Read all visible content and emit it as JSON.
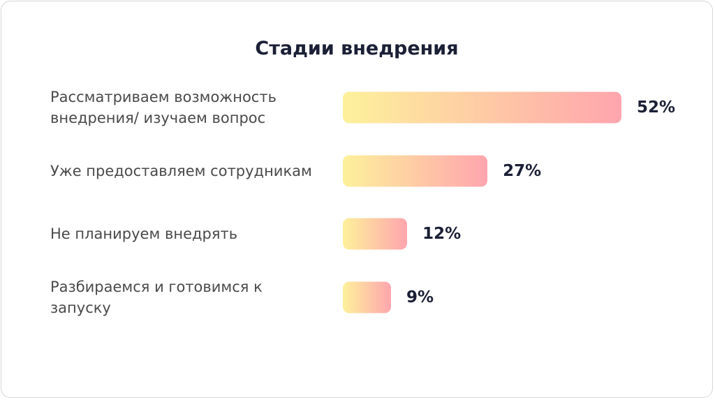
{
  "chart_data": {
    "type": "bar",
    "orientation": "horizontal",
    "title": "Стадии внедрения",
    "categories": [
      "Рассматриваем возможность внедрения/ изучаем вопрос",
      "Уже предоставляем сотрудникам",
      "Не планируем внедрять",
      "Разбираемся и готовимся к запуску"
    ],
    "values": [
      52,
      27,
      12,
      9
    ],
    "value_labels": [
      "52%",
      "27%",
      "12%",
      "9%"
    ],
    "gradient": [
      "#fdf19b",
      "#ffa5ae"
    ]
  }
}
